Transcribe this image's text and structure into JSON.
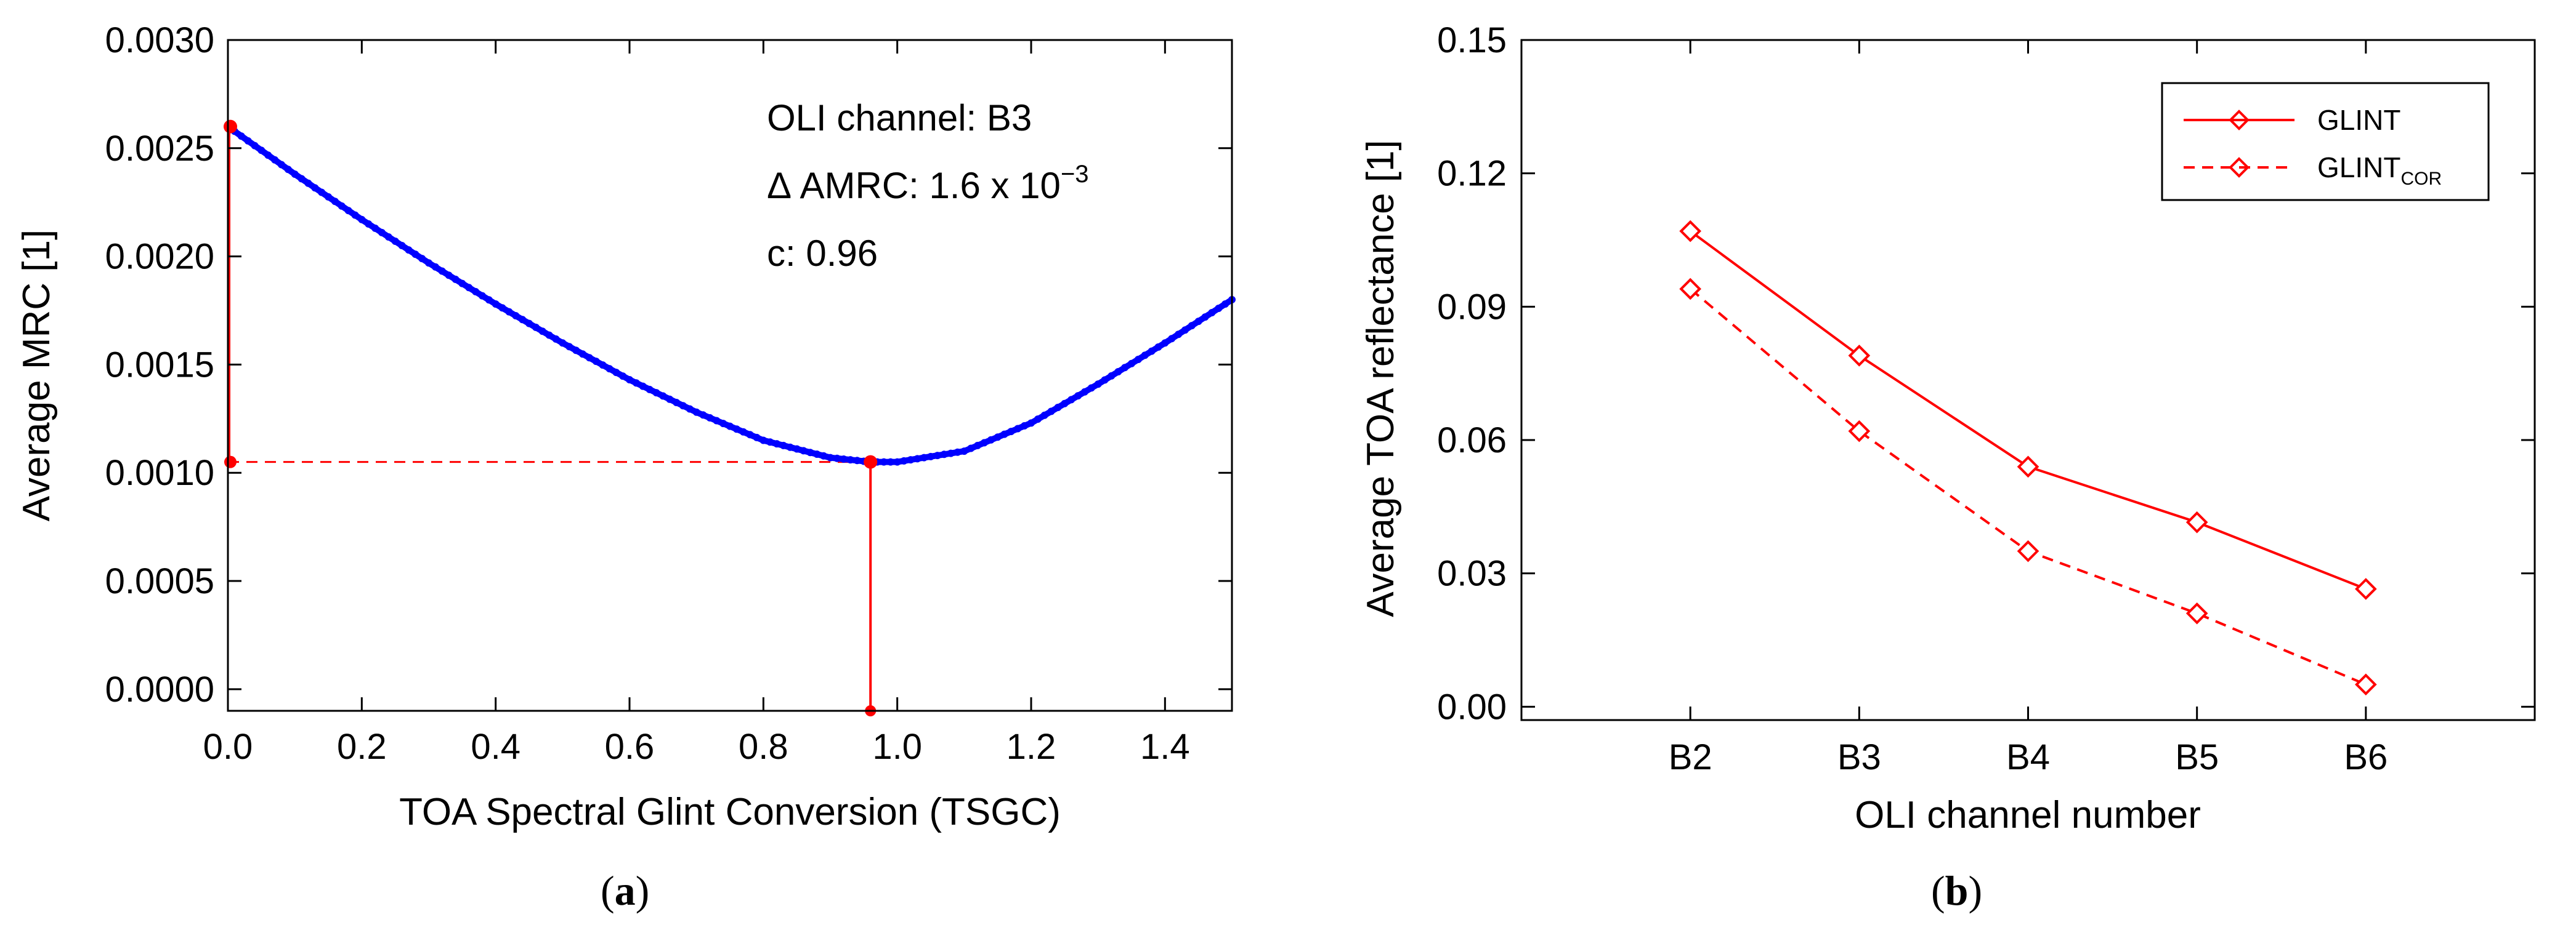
{
  "chart_data": [
    {
      "type": "line",
      "panel_caption": "(a)",
      "caption_letter": "a",
      "xlabel": "TOA Spectral Glint Conversion (TSGC)",
      "ylabel": "Average MRC [1]",
      "xlim": [
        0,
        1.5
      ],
      "ylim": [
        -0.0001,
        0.003
      ],
      "x_ticks": [
        0.0,
        0.2,
        0.4,
        0.6,
        0.8,
        1.0,
        1.2,
        1.4
      ],
      "x_tick_labels": [
        "0.0",
        "0.2",
        "0.4",
        "0.6",
        "0.8",
        "1.0",
        "1.2",
        "1.4"
      ],
      "y_ticks": [
        0.0,
        0.0005,
        0.001,
        0.0015,
        0.002,
        0.0025,
        0.003
      ],
      "y_tick_labels": [
        "0.0000",
        "0.0005",
        "0.0010",
        "0.0015",
        "0.0020",
        "0.0025",
        "0.0030"
      ],
      "series": [
        {
          "name": "MRC curve",
          "color": "#0000ff",
          "x": [
            0.0,
            0.1,
            0.2,
            0.3,
            0.4,
            0.5,
            0.6,
            0.7,
            0.8,
            0.9,
            0.96,
            1.0,
            1.1,
            1.2,
            1.3,
            1.4,
            1.5
          ],
          "y": [
            0.0026,
            0.00238,
            0.00217,
            0.00197,
            0.00178,
            0.0016,
            0.00143,
            0.00128,
            0.00115,
            0.00107,
            0.00105,
            0.00105,
            0.0011,
            0.00123,
            0.00141,
            0.0016,
            0.0018
          ]
        }
      ],
      "min_marker": {
        "x": 0.96,
        "y": 0.00105,
        "color": "#ff0000"
      },
      "start_marker": {
        "x": 0.0,
        "y": 0.0026,
        "color": "#ff0000"
      },
      "annotations": {
        "channel": "OLI channel: B3",
        "delta_prefix": "Δ AMRC: 1.6 x 10",
        "delta_exp": "−3",
        "c_value": "c:  0.96"
      }
    },
    {
      "type": "line",
      "panel_caption": "(b)",
      "caption_letter": "b",
      "xlabel": "OLI channel number",
      "ylabel": "Average TOA reflectance [1]",
      "categories": [
        "B2",
        "B3",
        "B4",
        "B5",
        "B6"
      ],
      "xlim": [
        0,
        6
      ],
      "ylim": [
        -0.003,
        0.15
      ],
      "y_ticks": [
        0.0,
        0.03,
        0.06,
        0.09,
        0.12,
        0.15
      ],
      "y_tick_labels": [
        "0.00",
        "0.03",
        "0.06",
        "0.09",
        "0.12",
        "0.15"
      ],
      "series": [
        {
          "name": "GLINT",
          "color": "#ff0000",
          "dash": "solid",
          "marker": "diamond",
          "values": [
            0.107,
            0.079,
            0.054,
            0.0415,
            0.0265
          ]
        },
        {
          "name": "GLINT_COR",
          "color": "#ff0000",
          "dash": "dashed",
          "marker": "diamond",
          "values": [
            0.094,
            0.062,
            0.035,
            0.021,
            0.005
          ]
        }
      ],
      "legend": {
        "placement": "top-right",
        "entries": [
          {
            "label": "GLINT",
            "sub": ""
          },
          {
            "label": "GLINT",
            "sub": "COR"
          }
        ]
      }
    }
  ]
}
